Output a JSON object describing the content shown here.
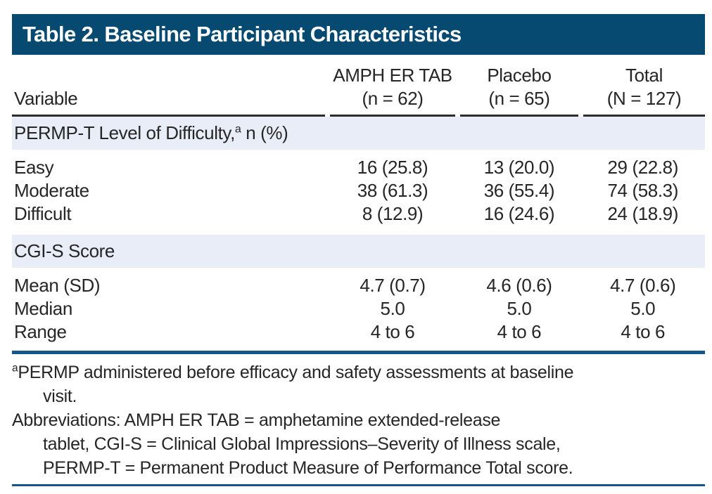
{
  "title": "Table 2. Baseline Participant Characteristics",
  "colors": {
    "title_bar_bg": "#064a72",
    "title_text": "#ffffff",
    "section_band_bg": "#e9edf8",
    "header_rule": "#2e2c2a",
    "blue_rule": "#15578a",
    "body_text": "#262626"
  },
  "table": {
    "columns": [
      {
        "label": "Variable",
        "sub": ""
      },
      {
        "label": "AMPH ER TAB",
        "sub": "(n = 62)"
      },
      {
        "label": "Placebo",
        "sub": "(n = 65)"
      },
      {
        "label": "Total",
        "sub": "(N = 127)"
      }
    ],
    "sections": [
      {
        "header": {
          "pre": "PERMP-T Level of Difficulty,",
          "sup": "a",
          "post": " n (%)"
        },
        "rows": [
          {
            "label": "Easy",
            "values": [
              "16 (25.8)",
              "13 (20.0)",
              "29 (22.8)"
            ]
          },
          {
            "label": "Moderate",
            "values": [
              "38 (61.3)",
              "36 (55.4)",
              "74 (58.3)"
            ]
          },
          {
            "label": "Difficult",
            "values": [
              "8 (12.9)",
              "16 (24.6)",
              "24 (18.9)"
            ]
          }
        ]
      },
      {
        "header": {
          "pre": "CGI-S Score",
          "sup": "",
          "post": ""
        },
        "rows": [
          {
            "label": "Mean (SD)",
            "values": [
              "4.7 (0.7)",
              "4.6 (0.6)",
              "4.7 (0.6)"
            ]
          },
          {
            "label": "Median",
            "values": [
              "5.0",
              "5.0",
              "5.0"
            ]
          },
          {
            "label": "Range",
            "values": [
              "4 to 6",
              "4 to 6",
              "4 to 6"
            ]
          }
        ]
      }
    ]
  },
  "footnotes": {
    "note_a": {
      "marker": "a",
      "line1": "PERMP administered before efficacy and safety assessments at baseline",
      "line2": "visit."
    },
    "abbreviations": {
      "line1": "Abbreviations: AMPH ER TAB = amphetamine extended-release",
      "line2": "tablet, CGI-S = Clinical Global Impressions–Severity of Illness scale,",
      "line3": "PERMP-T = Permanent Product Measure of Performance Total score."
    }
  }
}
